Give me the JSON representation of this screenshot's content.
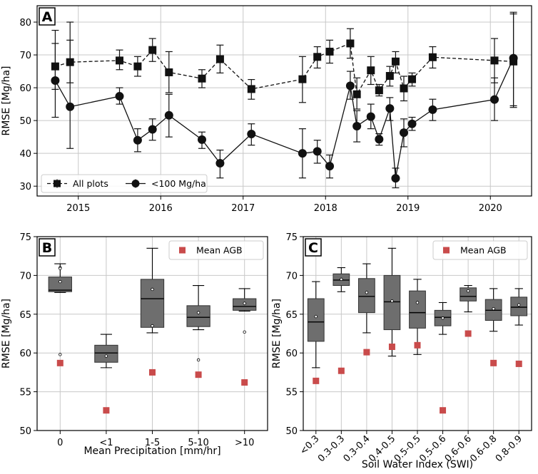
{
  "chart_data": [
    {
      "id": "A",
      "type": "line",
      "panel_label": "A",
      "xlabel": "",
      "ylabel": "RMSE [Mg/ha]",
      "xlim": [
        2014.5,
        2020.5
      ],
      "ylim": [
        27,
        85
      ],
      "xticks": [
        2015,
        2016,
        2017,
        2018,
        2019,
        2020
      ],
      "xtick_labels": [
        "2015",
        "2016",
        "2017",
        "2018",
        "2019",
        "2020"
      ],
      "yticks": [
        30,
        40,
        50,
        60,
        70,
        80
      ],
      "ytick_labels": [
        "30",
        "40",
        "50",
        "60",
        "70",
        "80"
      ],
      "grid": true,
      "legend_position": "lower-left",
      "series": [
        {
          "name": "All plots",
          "marker": "square",
          "linestyle": "dashed",
          "points": [
            {
              "x": 2014.72,
              "y": 66.5,
              "lo": 59.5,
              "hi": 73.5
            },
            {
              "x": 2014.9,
              "y": 67.8,
              "lo": 61.5,
              "hi": 74.5
            },
            {
              "x": 2015.5,
              "y": 68.3,
              "lo": 65.5,
              "hi": 71.5
            },
            {
              "x": 2015.72,
              "y": 66.5,
              "lo": 63.5,
              "hi": 69.5
            },
            {
              "x": 2015.9,
              "y": 71.5,
              "lo": 68.0,
              "hi": 75.0
            },
            {
              "x": 2016.1,
              "y": 64.7,
              "lo": 58.5,
              "hi": 71.0
            },
            {
              "x": 2016.5,
              "y": 62.8,
              "lo": 60.0,
              "hi": 65.5
            },
            {
              "x": 2016.72,
              "y": 68.7,
              "lo": 64.5,
              "hi": 73.0
            },
            {
              "x": 2017.1,
              "y": 59.6,
              "lo": 56.5,
              "hi": 62.5
            },
            {
              "x": 2017.72,
              "y": 62.6,
              "lo": 55.5,
              "hi": 69.5
            },
            {
              "x": 2017.9,
              "y": 69.4,
              "lo": 66.0,
              "hi": 72.5
            },
            {
              "x": 2018.05,
              "y": 71.0,
              "lo": 67.5,
              "hi": 74.5
            },
            {
              "x": 2018.3,
              "y": 73.5,
              "lo": 69.0,
              "hi": 78.0
            },
            {
              "x": 2018.38,
              "y": 58.0,
              "lo": 53.5,
              "hi": 63.0
            },
            {
              "x": 2018.55,
              "y": 65.3,
              "lo": 61.0,
              "hi": 69.5
            },
            {
              "x": 2018.65,
              "y": 59.2,
              "lo": 57.5,
              "hi": 61.0
            },
            {
              "x": 2018.78,
              "y": 63.6,
              "lo": 60.5,
              "hi": 66.5
            },
            {
              "x": 2018.85,
              "y": 68.0,
              "lo": 64.5,
              "hi": 71.0
            },
            {
              "x": 2018.95,
              "y": 59.8,
              "lo": 56.0,
              "hi": 63.5
            },
            {
              "x": 2019.05,
              "y": 62.6,
              "lo": 60.5,
              "hi": 64.5
            },
            {
              "x": 2019.3,
              "y": 69.3,
              "lo": 66.0,
              "hi": 72.5
            },
            {
              "x": 2020.05,
              "y": 68.3,
              "lo": 61.5,
              "hi": 75.0
            },
            {
              "x": 2020.28,
              "y": 68.0,
              "lo": 54.5,
              "hi": 82.5
            }
          ]
        },
        {
          "name": "<100 Mg/ha",
          "marker": "circle",
          "linestyle": "solid",
          "points": [
            {
              "x": 2014.72,
              "y": 62.2,
              "lo": 51.0,
              "hi": 77.5
            },
            {
              "x": 2014.9,
              "y": 54.2,
              "lo": 41.5,
              "hi": 80.0
            },
            {
              "x": 2015.5,
              "y": 57.4,
              "lo": 55.0,
              "hi": 60.0
            },
            {
              "x": 2015.72,
              "y": 44.0,
              "lo": 40.5,
              "hi": 47.5
            },
            {
              "x": 2015.9,
              "y": 47.3,
              "lo": 44.0,
              "hi": 50.5
            },
            {
              "x": 2016.1,
              "y": 51.6,
              "lo": 45.0,
              "hi": 58.0
            },
            {
              "x": 2016.5,
              "y": 44.2,
              "lo": 41.5,
              "hi": 46.5
            },
            {
              "x": 2016.72,
              "y": 37.0,
              "lo": 32.5,
              "hi": 41.0
            },
            {
              "x": 2017.1,
              "y": 45.9,
              "lo": 42.5,
              "hi": 49.0
            },
            {
              "x": 2017.72,
              "y": 40.0,
              "lo": 32.5,
              "hi": 47.5
            },
            {
              "x": 2017.9,
              "y": 40.6,
              "lo": 37.0,
              "hi": 44.0
            },
            {
              "x": 2018.05,
              "y": 36.1,
              "lo": 32.5,
              "hi": 39.5
            },
            {
              "x": 2018.3,
              "y": 60.6,
              "lo": 56.5,
              "hi": 65.0
            },
            {
              "x": 2018.38,
              "y": 48.3,
              "lo": 43.5,
              "hi": 53.0
            },
            {
              "x": 2018.55,
              "y": 51.2,
              "lo": 47.5,
              "hi": 55.0
            },
            {
              "x": 2018.65,
              "y": 44.3,
              "lo": 42.5,
              "hi": 46.0
            },
            {
              "x": 2018.78,
              "y": 53.7,
              "lo": 50.0,
              "hi": 57.0
            },
            {
              "x": 2018.85,
              "y": 32.4,
              "lo": 29.5,
              "hi": 35.5
            },
            {
              "x": 2018.95,
              "y": 46.3,
              "lo": 42.0,
              "hi": 50.5
            },
            {
              "x": 2019.05,
              "y": 49.0,
              "lo": 47.0,
              "hi": 51.0
            },
            {
              "x": 2019.3,
              "y": 53.3,
              "lo": 50.0,
              "hi": 56.5
            },
            {
              "x": 2020.05,
              "y": 56.4,
              "lo": 50.0,
              "hi": 63.0
            },
            {
              "x": 2020.28,
              "y": 69.0,
              "lo": 54.0,
              "hi": 83.0
            }
          ]
        }
      ]
    },
    {
      "id": "B",
      "type": "box",
      "panel_label": "B",
      "xlabel": "Mean Precipitation [mm/hr]",
      "ylabel": "RMSE [Mg/ha]",
      "ylim": [
        50,
        75
      ],
      "yticks": [
        50,
        55,
        60,
        65,
        70,
        75
      ],
      "ytick_labels": [
        "50",
        "55",
        "60",
        "65",
        "70",
        "75"
      ],
      "grid": true,
      "legend": "Mean AGB",
      "legend_position": "top-right",
      "categories": [
        "0",
        "<1",
        "1-5",
        "5-10",
        ">10"
      ],
      "boxes": [
        {
          "whislo": 67.8,
          "q1": 67.9,
          "med": 68.1,
          "q3": 69.8,
          "whishi": 71.5,
          "mean": 69.2,
          "fliers": [
            59.8,
            71.0,
            70.9
          ],
          "mean_agb": 58.7
        },
        {
          "whislo": 58.1,
          "q1": 58.8,
          "med": 60.0,
          "q3": 61.0,
          "whishi": 62.4,
          "mean": 59.6,
          "fliers": [],
          "mean_agb": 52.6
        },
        {
          "whislo": 62.6,
          "q1": 63.3,
          "med": 67.0,
          "q3": 69.5,
          "whishi": 73.5,
          "mean": 68.2,
          "fliers": [
            63.5
          ],
          "mean_agb": 57.5
        },
        {
          "whislo": 63.0,
          "q1": 63.4,
          "med": 64.6,
          "q3": 66.1,
          "whishi": 68.7,
          "mean": 65.2,
          "fliers": [
            59.1
          ],
          "mean_agb": 57.2
        },
        {
          "whislo": 65.4,
          "q1": 65.5,
          "med": 66.0,
          "q3": 67.0,
          "whishi": 68.3,
          "mean": 66.4,
          "fliers": [
            62.7
          ],
          "mean_agb": 56.2
        }
      ]
    },
    {
      "id": "C",
      "type": "box",
      "panel_label": "C",
      "xlabel": "Soil Water Index (SWI)",
      "ylabel": "RMSE [Mg/ha]",
      "ylim": [
        50,
        75
      ],
      "yticks": [
        50,
        55,
        60,
        65,
        70,
        75
      ],
      "ytick_labels": [
        "50",
        "55",
        "60",
        "65",
        "70",
        "75"
      ],
      "grid": true,
      "legend": "Mean AGB",
      "legend_position": "top-right",
      "categories": [
        "<0.3",
        "0.3-0.3",
        "0.3-0.4",
        "0.4-0.5",
        "0.5-0.5",
        "0.5-0.6",
        "0.6-0.6",
        "0.6-0.8",
        "0.8-0.9"
      ],
      "boxes": [
        {
          "whislo": 58.1,
          "q1": 61.5,
          "med": 64.0,
          "q3": 67.0,
          "whishi": 69.2,
          "mean": 64.7,
          "fliers": [],
          "mean_agb": 56.4
        },
        {
          "whislo": 67.9,
          "q1": 68.7,
          "med": 69.4,
          "q3": 70.2,
          "whishi": 71.0,
          "mean": 69.5,
          "fliers": [],
          "mean_agb": 57.7
        },
        {
          "whislo": 62.6,
          "q1": 65.2,
          "med": 67.3,
          "q3": 69.6,
          "whishi": 71.5,
          "mean": 67.8,
          "fliers": [],
          "mean_agb": 60.1
        },
        {
          "whislo": 59.6,
          "q1": 63.0,
          "med": 66.6,
          "q3": 70.0,
          "whishi": 73.5,
          "mean": 66.7,
          "fliers": [],
          "mean_agb": 60.8
        },
        {
          "whislo": 59.8,
          "q1": 63.2,
          "med": 65.2,
          "q3": 68.0,
          "whishi": 69.5,
          "mean": 66.5,
          "fliers": [],
          "mean_agb": 61.0
        },
        {
          "whislo": 62.4,
          "q1": 63.5,
          "med": 64.6,
          "q3": 65.5,
          "whishi": 66.5,
          "mean": 64.5,
          "fliers": [],
          "mean_agb": 52.6
        },
        {
          "whislo": 65.3,
          "q1": 66.7,
          "med": 67.3,
          "q3": 68.4,
          "whishi": 68.7,
          "mean": 68.0,
          "fliers": [],
          "mean_agb": 62.5
        },
        {
          "whislo": 62.8,
          "q1": 64.2,
          "med": 65.5,
          "q3": 66.9,
          "whishi": 68.3,
          "mean": 65.7,
          "fliers": [],
          "mean_agb": 58.7
        },
        {
          "whislo": 63.6,
          "q1": 64.8,
          "med": 65.9,
          "q3": 67.2,
          "whishi": 68.3,
          "mean": 66.2,
          "fliers": [],
          "mean_agb": 58.6
        }
      ]
    }
  ],
  "colors": {
    "box_fill": "#6e6e6e",
    "mean_agb_marker": "#c94b4b",
    "line": "#111111",
    "grid": "#c8c8c8"
  }
}
